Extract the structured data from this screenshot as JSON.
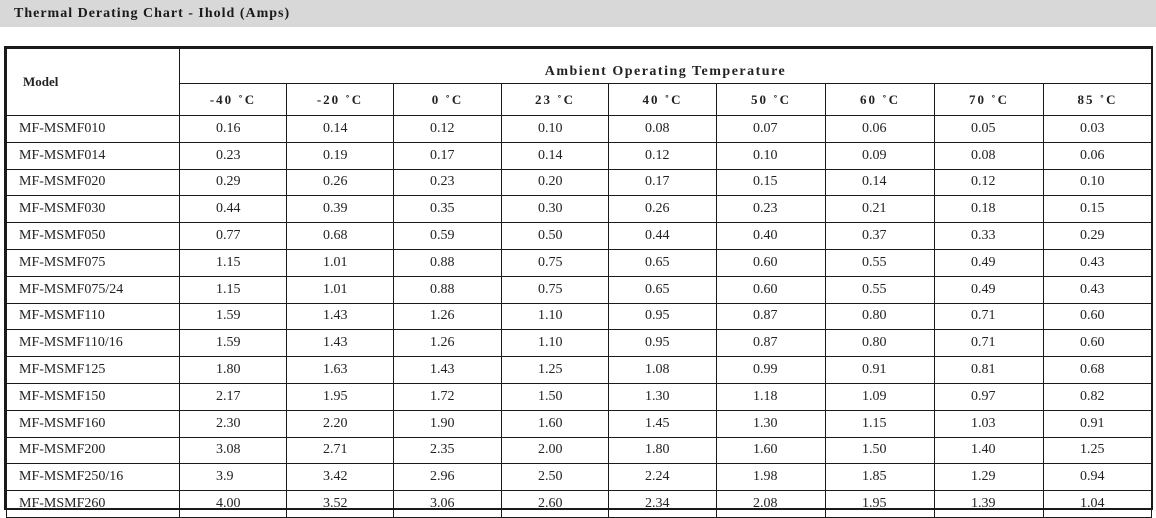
{
  "title": "Thermal Derating Chart - Ihold (Amps)",
  "table": {
    "model_header": "Model",
    "group_header": "Ambient Operating Temperature",
    "temperatures": [
      "-40 ˚C",
      "-20 ˚C",
      "0 ˚C",
      "23 ˚C",
      "40 ˚C",
      "50 ˚C",
      "60 ˚C",
      "70 ˚C",
      "85 ˚C"
    ],
    "rows": [
      {
        "model": "MF-MSMF010",
        "values": [
          "0.16",
          "0.14",
          "0.12",
          "0.10",
          "0.08",
          "0.07",
          "0.06",
          "0.05",
          "0.03"
        ]
      },
      {
        "model": "MF-MSMF014",
        "values": [
          "0.23",
          "0.19",
          "0.17",
          "0.14",
          "0.12",
          "0.10",
          "0.09",
          "0.08",
          "0.06"
        ]
      },
      {
        "model": "MF-MSMF020",
        "values": [
          "0.29",
          "0.26",
          "0.23",
          "0.20",
          "0.17",
          "0.15",
          "0.14",
          "0.12",
          "0.10"
        ]
      },
      {
        "model": "MF-MSMF030",
        "values": [
          "0.44",
          "0.39",
          "0.35",
          "0.30",
          "0.26",
          "0.23",
          "0.21",
          "0.18",
          "0.15"
        ]
      },
      {
        "model": "MF-MSMF050",
        "values": [
          "0.77",
          "0.68",
          "0.59",
          "0.50",
          "0.44",
          "0.40",
          "0.37",
          "0.33",
          "0.29"
        ]
      },
      {
        "model": "MF-MSMF075",
        "values": [
          "1.15",
          "1.01",
          "0.88",
          "0.75",
          "0.65",
          "0.60",
          "0.55",
          "0.49",
          "0.43"
        ]
      },
      {
        "model": "MF-MSMF075/24",
        "values": [
          "1.15",
          "1.01",
          "0.88",
          "0.75",
          "0.65",
          "0.60",
          "0.55",
          "0.49",
          "0.43"
        ]
      },
      {
        "model": "MF-MSMF110",
        "values": [
          "1.59",
          "1.43",
          "1.26",
          "1.10",
          "0.95",
          "0.87",
          "0.80",
          "0.71",
          "0.60"
        ]
      },
      {
        "model": "MF-MSMF110/16",
        "values": [
          "1.59",
          "1.43",
          "1.26",
          "1.10",
          "0.95",
          "0.87",
          "0.80",
          "0.71",
          "0.60"
        ]
      },
      {
        "model": "MF-MSMF125",
        "values": [
          "1.80",
          "1.63",
          "1.43",
          "1.25",
          "1.08",
          "0.99",
          "0.91",
          "0.81",
          "0.68"
        ]
      },
      {
        "model": "MF-MSMF150",
        "values": [
          "2.17",
          "1.95",
          "1.72",
          "1.50",
          "1.30",
          "1.18",
          "1.09",
          "0.97",
          "0.82"
        ]
      },
      {
        "model": "MF-MSMF160",
        "values": [
          "2.30",
          "2.20",
          "1.90",
          "1.60",
          "1.45",
          "1.30",
          "1.15",
          "1.03",
          "0.91"
        ]
      },
      {
        "model": "MF-MSMF200",
        "values": [
          "3.08",
          "2.71",
          "2.35",
          "2.00",
          "1.80",
          "1.60",
          "1.50",
          "1.40",
          "1.25"
        ]
      },
      {
        "model": "MF-MSMF250/16",
        "values": [
          "3.9",
          "3.42",
          "2.96",
          "2.50",
          "2.24",
          "1.98",
          "1.85",
          "1.29",
          "0.94"
        ]
      },
      {
        "model": "MF-MSMF260",
        "values": [
          "4.00",
          "3.52",
          "3.06",
          "2.60",
          "2.34",
          "2.08",
          "1.95",
          "1.39",
          "1.04"
        ]
      }
    ]
  }
}
